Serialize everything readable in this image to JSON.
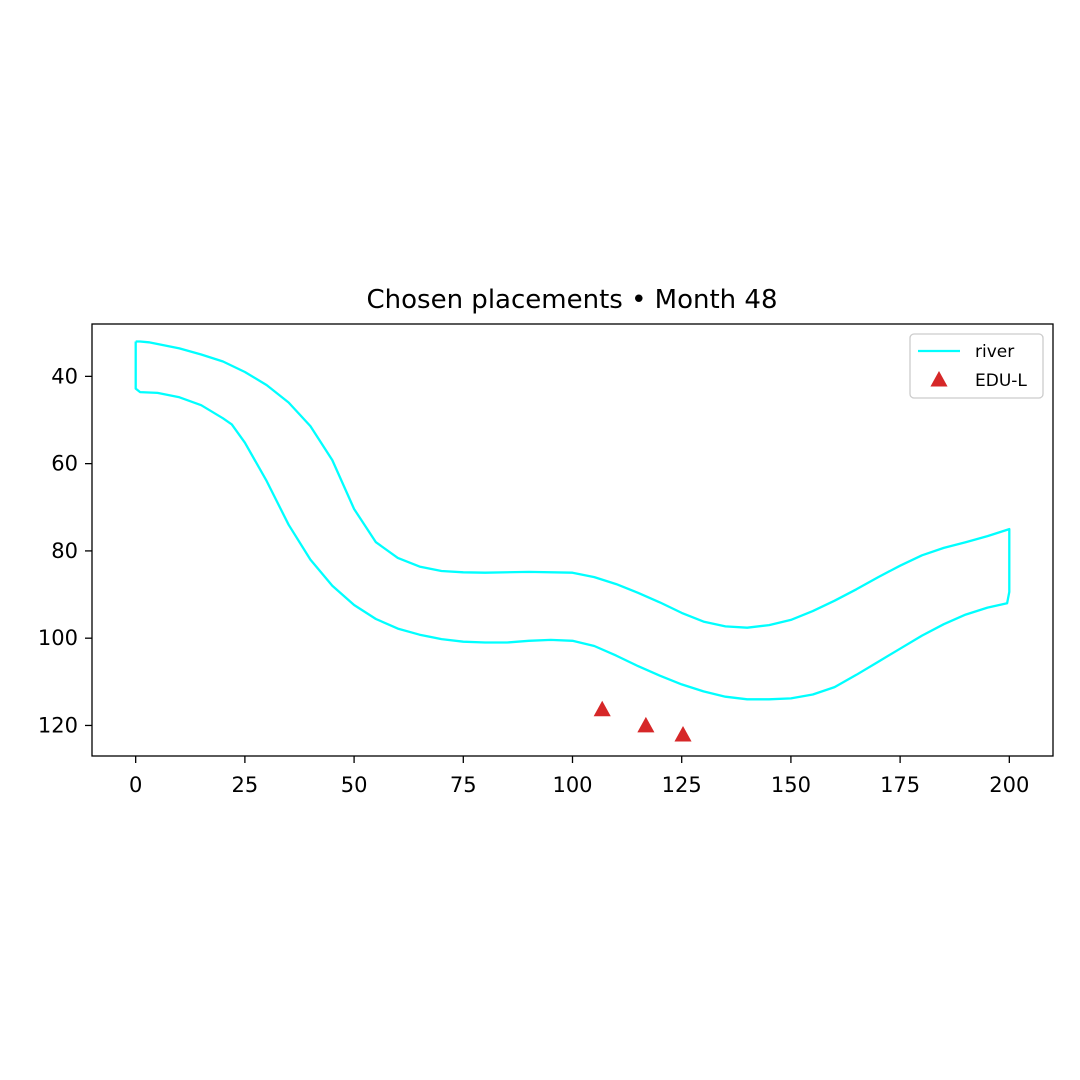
{
  "chart_data": {
    "type": "line",
    "title": "Chosen placements • Month 48",
    "xlabel": "",
    "ylabel": "",
    "xlim": [
      -10,
      210
    ],
    "ylim": [
      127,
      28
    ],
    "y_inverted": true,
    "grid": false,
    "legend_position": "top-right",
    "x_ticks": [
      0,
      25,
      50,
      75,
      100,
      125,
      150,
      175,
      200
    ],
    "y_ticks": [
      40,
      60,
      80,
      100,
      120
    ],
    "series": [
      {
        "name": "river",
        "kind": "line",
        "color": "#00ffff",
        "x": [
          0,
          1,
          3,
          6,
          10,
          15,
          20,
          25,
          30,
          35,
          40,
          45,
          50,
          55,
          60,
          65,
          70,
          75,
          80,
          90,
          100,
          105,
          110,
          115,
          120,
          125,
          130,
          135,
          140,
          145,
          150,
          155,
          160,
          165,
          170,
          175,
          180,
          185,
          190,
          195,
          200,
          200,
          199.5,
          195,
          190,
          185,
          180,
          175,
          170,
          165,
          160,
          155,
          150,
          145,
          140,
          135,
          130,
          125,
          120,
          115,
          110,
          105,
          100,
          95,
          90,
          85,
          80,
          75,
          70,
          65,
          60,
          55,
          50,
          45,
          40,
          35,
          30,
          25,
          22,
          20,
          15,
          10,
          5,
          1,
          0,
          0
        ],
        "y": [
          32,
          32,
          32.2,
          32.8,
          33.6,
          35,
          36.6,
          39,
          42,
          46,
          51.4,
          59.2,
          70.4,
          78,
          81.6,
          83.6,
          84.6,
          84.9,
          85,
          84.8,
          85,
          86,
          87.6,
          89.6,
          91.8,
          94.2,
          96.2,
          97.3,
          97.6,
          97,
          95.8,
          93.8,
          91.4,
          88.8,
          86,
          83.4,
          81,
          79.3,
          78,
          76.6,
          75,
          89.4,
          92,
          93,
          94.6,
          96.8,
          99.4,
          102.4,
          105.4,
          108.4,
          111.2,
          112.9,
          113.8,
          114,
          114,
          113.4,
          112.2,
          110.6,
          108.6,
          106.4,
          104,
          101.8,
          100.6,
          100.4,
          100.6,
          101,
          101,
          100.8,
          100.2,
          99.2,
          97.8,
          95.6,
          92.4,
          88,
          82,
          74,
          64,
          55.2,
          51,
          49.6,
          46.6,
          44.8,
          43.8,
          43.6,
          42.8,
          32
        ]
      },
      {
        "name": "EDU-L",
        "kind": "scatter",
        "marker": "triangle-up",
        "color": "#d62728",
        "x": [
          106.8,
          116.8,
          125.3
        ],
        "y": [
          116.4,
          120.1,
          122.2
        ]
      }
    ]
  }
}
